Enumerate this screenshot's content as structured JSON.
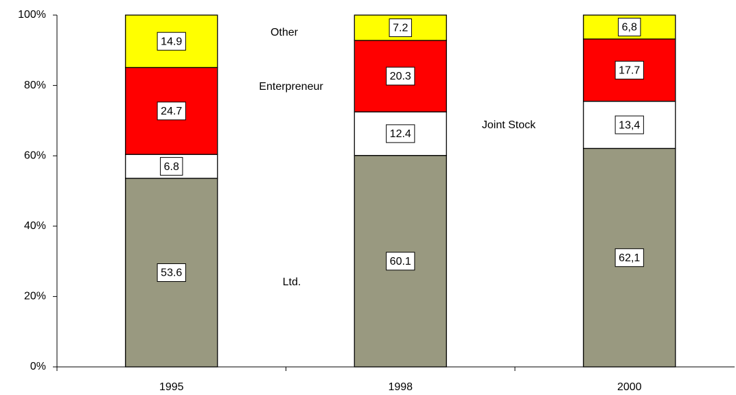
{
  "chart_data": {
    "type": "stacked_bar",
    "categories": [
      "1995",
      "1998",
      "2000"
    ],
    "series": [
      {
        "name": "Ltd.",
        "color": "#999980",
        "values": [
          53.6,
          60.1,
          62.1
        ],
        "value_labels": [
          "53.6",
          "60.1",
          "62,1"
        ]
      },
      {
        "name": "Joint Stock",
        "color": "#ffffff",
        "values": [
          6.8,
          12.4,
          13.4
        ],
        "value_labels": [
          "6.8",
          "12.4",
          "13,4"
        ]
      },
      {
        "name": "Enterpreneur",
        "color": "#ff0000",
        "values": [
          24.7,
          20.3,
          17.7
        ],
        "value_labels": [
          "24.7",
          "20.3",
          "17.7"
        ]
      },
      {
        "name": "Other",
        "color": "#ffff00",
        "values": [
          14.9,
          7.2,
          6.8
        ],
        "value_labels": [
          "14.9",
          "7.2",
          "6,8"
        ]
      }
    ],
    "ylim": [
      0,
      100
    ],
    "yticks": [
      {
        "value": 0,
        "label": "0%"
      },
      {
        "value": 20,
        "label": "20%"
      },
      {
        "value": 40,
        "label": "40%"
      },
      {
        "value": 60,
        "label": "60%"
      },
      {
        "value": 80,
        "label": "80%"
      },
      {
        "value": 100,
        "label": "100%"
      }
    ]
  }
}
